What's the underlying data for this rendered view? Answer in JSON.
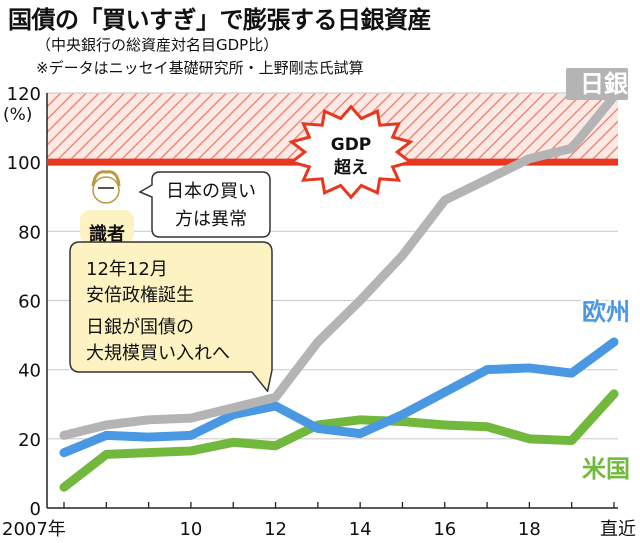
{
  "header": {
    "title": "国債の「買いすぎ」で膨張する日銀資産",
    "subtitle": "（中央銀行の総資産対名目GDP比）",
    "note": "※データはニッセイ基礎研究所・上野剛志氏試算"
  },
  "colors": {
    "boj": "#b4b4b4",
    "euro": "#4a98e2",
    "us": "#71b83d",
    "gdp_line": "#e8361f",
    "callout_fill": "#fdf3c2"
  },
  "annotations": {
    "gdp_burst_line1": "GDP",
    "gdp_burst_line2": "超え",
    "expert_label": "識者",
    "expert_quote_line1": "日本の買い",
    "expert_quote_line2": "方は異常",
    "event_line1": "12年12月",
    "event_line2": "安倍政権誕生",
    "event_line3": "日銀が国債の",
    "event_line4": "大規模買い入れへ"
  },
  "chart_data": {
    "type": "line",
    "title": "国債の「買いすぎ」で膨張する日銀資産",
    "subtitle": "（中央銀行の総資産対名目GDP比）",
    "xlabel": "",
    "ylabel": "(%)",
    "ylim": [
      0,
      120
    ],
    "yticks": [
      0,
      20,
      40,
      60,
      80,
      100,
      120
    ],
    "y_unit_label": "(%)",
    "x_tick_labels": [
      "2007年",
      "10",
      "12",
      "14",
      "16",
      "18",
      "直近"
    ],
    "x": [
      "2007",
      "2008",
      "2009",
      "2010",
      "2011",
      "2012",
      "2013",
      "2014",
      "2015",
      "2016",
      "2017",
      "2018",
      "2019",
      "直近"
    ],
    "reference_line": {
      "value": 100,
      "hatched_above": true
    },
    "series": [
      {
        "name": "日銀",
        "color": "#b4b4b4",
        "values": [
          21,
          24,
          25.5,
          26,
          29,
          32,
          48,
          60,
          73,
          89,
          95,
          101,
          104,
          119
        ]
      },
      {
        "name": "欧州",
        "color": "#4a98e2",
        "values": [
          16,
          21,
          20.5,
          21,
          27,
          29.5,
          23,
          21.5,
          27,
          33.5,
          40,
          40.5,
          39,
          48
        ]
      },
      {
        "name": "米国",
        "color": "#71b83d",
        "values": [
          6,
          15.5,
          16,
          16.5,
          19,
          18,
          24,
          25.5,
          25,
          24,
          23.5,
          20,
          19.5,
          33
        ]
      }
    ],
    "series_labels_position": "right",
    "grid": true
  }
}
